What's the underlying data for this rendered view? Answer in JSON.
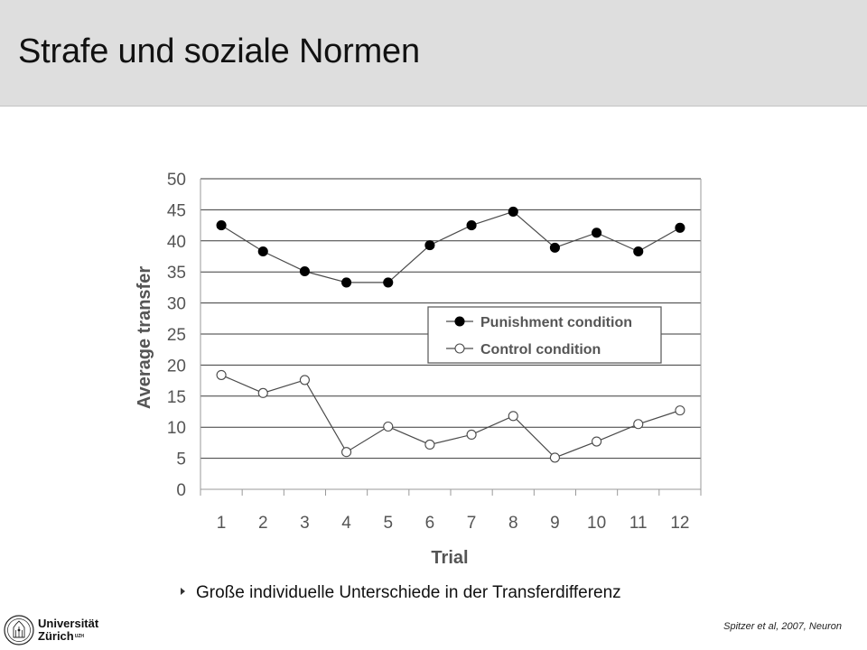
{
  "slide": {
    "title": "Strafe und soziale Normen",
    "bullet": "Große individuelle Unterschiede in der Transferdifferenz",
    "citation": "Spitzer et al, 2007, Neuron"
  },
  "logo": {
    "line1": "Universität",
    "line2": "Zürich",
    "mark": "UZH"
  },
  "chart_data": {
    "type": "line",
    "xlabel": "Trial",
    "ylabel": "Average transfer",
    "categories": [
      "1",
      "2",
      "3",
      "4",
      "5",
      "6",
      "7",
      "8",
      "9",
      "10",
      "11",
      "12"
    ],
    "ylim": [
      0,
      50
    ],
    "yticks": [
      0,
      5,
      10,
      15,
      20,
      25,
      30,
      35,
      40,
      45,
      50
    ],
    "grid": true,
    "legend_position": "center-right",
    "series": [
      {
        "name": "Punishment condition",
        "marker": "filled-circle",
        "values": [
          42.5,
          38.3,
          35.1,
          33.3,
          33.3,
          39.3,
          42.5,
          44.7,
          38.9,
          41.3,
          38.3,
          42.1
        ]
      },
      {
        "name": "Control condition",
        "marker": "open-circle",
        "values": [
          18.4,
          15.5,
          17.6,
          6.0,
          10.1,
          7.2,
          8.8,
          11.8,
          5.1,
          7.7,
          10.5,
          12.7
        ]
      }
    ],
    "colors": {
      "line": "#4a4a4a",
      "grid": "#3a3a3a",
      "axis_text": "#555555",
      "marker_fill": "#000000"
    }
  }
}
